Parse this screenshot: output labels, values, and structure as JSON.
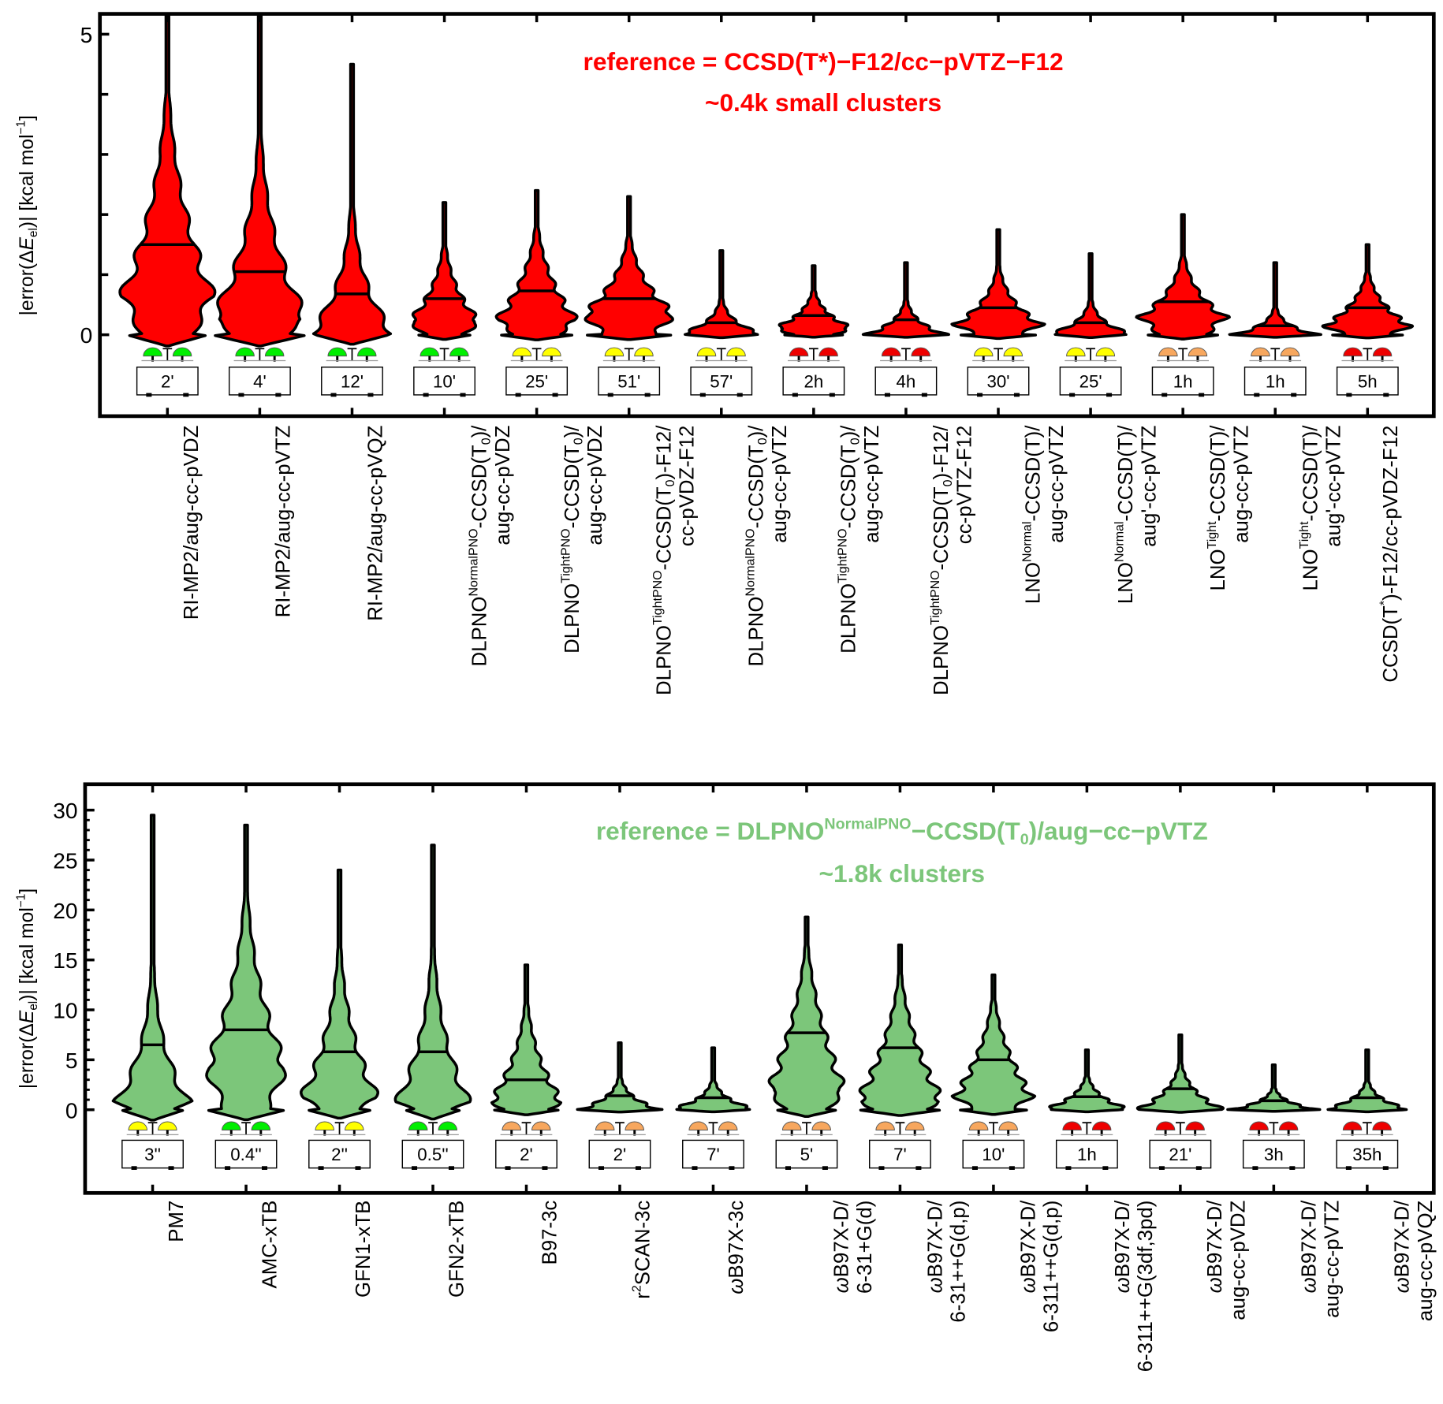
{
  "chart_data": [
    {
      "type": "violin",
      "title_lines": [
        "reference = CCSD(T*)−F12/cc−pVTZ−F12",
        "~0.4k small clusters"
      ],
      "title_color": "#ff0000",
      "ylabel": "|error(Δ%{E}_{el})| [kcal mol^{−1}]",
      "ylim": [
        0,
        5.3
      ],
      "yticks": [
        "0",
        "5"
      ],
      "fill_color": "#ff0000",
      "categories": [
        [
          "RI-MP2/aug-cc-pVDZ"
        ],
        [
          "RI-MP2/aug-cc-pVTZ"
        ],
        [
          "RI-MP2/aug-cc-pVQZ"
        ],
        [
          "DLPNO^{NormalPNO}-CCSD(T_{0})/",
          "aug-cc-pVDZ"
        ],
        [
          "DLPNO^{TightPNO}-CCSD(T_{0})/",
          "aug-cc-pVDZ"
        ],
        [
          "DLPNO^{TightPNO}-CCSD(T_{0})-F12/",
          "cc-pVDZ-F12"
        ],
        [
          "DLPNO^{NormalPNO}-CCSD(T_{0})/",
          "aug-cc-pVTZ"
        ],
        [
          "DLPNO^{TightPNO}-CCSD(T_{0})/",
          "aug-cc-pVTZ"
        ],
        [
          "DLPNO^{TightPNO}-CCSD(T_{0})-F12/",
          "cc-pVTZ-F12"
        ],
        [
          "LNO^{Normal}-CCSD(T)/",
          "aug-cc-pVTZ"
        ],
        [
          "LNO^{Normal}-CCSD(T)/",
          "aug'-cc-pVTZ"
        ],
        [
          "LNO^{Tight}-CCSD(T)/",
          "aug-cc-pVTZ"
        ],
        [
          "LNO^{Tight}-CCSD(T)/",
          "aug'-cc-pVTZ"
        ],
        [
          "CCSD(T^{*})-F12/cc-pVDZ-F12"
        ]
      ],
      "max": [
        5.3,
        5.3,
        4.5,
        2.2,
        2.4,
        2.3,
        1.4,
        1.15,
        1.2,
        1.75,
        1.35,
        2.0,
        1.2,
        1.5
      ],
      "median": [
        1.5,
        1.05,
        0.68,
        0.6,
        0.73,
        0.6,
        0.2,
        0.32,
        0.25,
        0.45,
        0.2,
        0.55,
        0.15,
        0.45
      ],
      "cost_time": [
        "2'",
        "4'",
        "12'",
        "10'",
        "25'",
        "51'",
        "57'",
        "2h",
        "4h",
        "30'",
        "25'",
        "1h",
        "1h",
        "5h"
      ],
      "cost_level": [
        "green",
        "green",
        "green",
        "green",
        "yellow",
        "yellow",
        "yellow",
        "red",
        "red",
        "yellow",
        "yellow",
        "orange",
        "orange",
        "red"
      ]
    },
    {
      "type": "violin",
      "title_lines": [
        "reference = DLPNO^{NormalPNO}−CCSD(T_{0})/aug−cc−pVTZ",
        "~1.8k clusters"
      ],
      "title_color": "#7cc67a",
      "ylabel": "|error(Δ%{E}_{el})| [kcal mol^{−1}]",
      "ylim": [
        0,
        31
      ],
      "yticks": [
        "0",
        "5",
        "10",
        "15",
        "20",
        "25",
        "30"
      ],
      "fill_color": "#7cc67a",
      "categories": [
        [
          "PM7"
        ],
        [
          "AMC-xTB"
        ],
        [
          "GFN1-xTB"
        ],
        [
          "GFN2-xTB"
        ],
        [
          "B97-3c"
        ],
        [
          "r^{2}SCAN-3c"
        ],
        [
          "%{ω}B97X-3c"
        ],
        [
          "%{ω}B97X-D/",
          "6-31+G(d)"
        ],
        [
          "%{ω}B97X-D/",
          "6-31++G(d,p)"
        ],
        [
          "%{ω}B97X-D/",
          "6-311++G(d,p)"
        ],
        [
          "%{ω}B97X-D/",
          "6-311++G(3df,3pd)"
        ],
        [
          "%{ω}B97X-D/",
          "aug-cc-pVDZ"
        ],
        [
          "%{ω}B97X-D/",
          "aug-cc-pVTZ"
        ],
        [
          "%{ω}B97X-D/",
          "aug-cc-pVQZ"
        ]
      ],
      "max": [
        29.5,
        28.5,
        24,
        26.5,
        14.5,
        6.7,
        6.2,
        19.3,
        16.5,
        13.5,
        6,
        7.5,
        4.5,
        6
      ],
      "median": [
        6.5,
        8,
        5.8,
        5.8,
        3,
        1.4,
        1.2,
        7.7,
        6.2,
        5,
        1.3,
        2.1,
        0.9,
        1.2
      ],
      "cost_time": [
        "3''",
        "0.4''",
        "2''",
        "0.5''",
        "2'",
        "2'",
        "7'",
        "5'",
        "7'",
        "10'",
        "1h",
        "21'",
        "3h",
        "35h"
      ],
      "cost_level": [
        "yellow",
        "green",
        "yellow",
        "green",
        "orange",
        "orange",
        "orange",
        "orange",
        "orange",
        "orange",
        "red",
        "red",
        "red",
        "red"
      ]
    }
  ],
  "cost_colors": {
    "green": "#00ee00",
    "yellow": "#ffff00",
    "orange": "#f7a75e",
    "red": "#ee0000"
  }
}
